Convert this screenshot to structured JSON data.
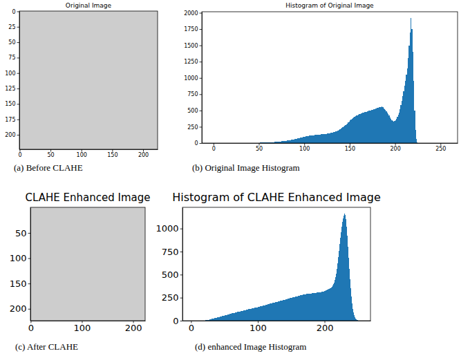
{
  "chart_data": [
    {
      "type": "image",
      "title": "Original Image",
      "caption": "(a) Before CLAHE",
      "xlim": [
        -0.5,
        223.5
      ],
      "ylim": [
        223.5,
        -0.5
      ],
      "xticks": [
        0,
        50,
        100,
        150,
        200
      ],
      "yticks": [
        0,
        25,
        50,
        75,
        100,
        125,
        150,
        175,
        200
      ]
    },
    {
      "type": "histogram",
      "title": "Histogram of Original Image",
      "caption": "(b) Original Image Histogram",
      "color": "#1f77b4",
      "xlim": [
        -12.8,
        268.8
      ],
      "ylim": [
        0,
        2016
      ],
      "xticks": [
        0,
        50,
        100,
        150,
        200,
        250
      ],
      "yticks": [
        0,
        250,
        500,
        750,
        1000,
        1250,
        1500,
        1750,
        2000
      ],
      "bins": [
        35,
        36,
        37,
        38,
        39,
        40,
        41,
        42,
        43,
        44,
        45,
        46,
        47,
        48,
        49,
        50,
        51,
        52,
        53,
        54,
        55,
        56,
        57,
        58,
        59,
        60,
        61,
        62,
        63,
        64,
        65,
        66,
        67,
        68,
        69,
        70,
        71,
        72,
        73,
        74,
        75,
        76,
        77,
        78,
        79,
        80,
        81,
        82,
        83,
        84,
        85,
        86,
        87,
        88,
        89,
        90,
        91,
        92,
        93,
        94,
        95,
        96,
        97,
        98,
        99,
        100,
        101,
        102,
        103,
        104,
        105,
        106,
        107,
        108,
        109,
        110,
        111,
        112,
        113,
        114,
        115,
        116,
        117,
        118,
        119,
        120,
        121,
        122,
        123,
        124,
        125,
        126,
        127,
        128,
        129,
        130,
        131,
        132,
        133,
        134,
        135,
        136,
        137,
        138,
        139,
        140,
        141,
        142,
        143,
        144,
        145,
        146,
        147,
        148,
        149,
        150,
        151,
        152,
        153,
        154,
        155,
        156,
        157,
        158,
        159,
        160,
        161,
        162,
        163,
        164,
        165,
        166,
        167,
        168,
        169,
        170,
        171,
        172,
        173,
        174,
        175,
        176,
        177,
        178,
        179,
        180,
        181,
        182,
        183,
        184,
        185,
        186,
        187,
        188,
        189,
        190,
        191,
        192,
        193,
        194,
        195,
        196,
        197,
        198,
        199,
        200,
        201,
        202,
        203,
        204,
        205,
        206,
        207,
        208,
        209,
        210,
        211,
        212,
        213,
        214,
        215,
        216,
        217,
        218,
        219,
        220,
        221,
        222,
        223,
        224,
        225,
        226
      ],
      "values": [
        1,
        0,
        1,
        1,
        2,
        1,
        2,
        2,
        3,
        2,
        3,
        4,
        3,
        4,
        5,
        5,
        6,
        6,
        7,
        7,
        8,
        8,
        9,
        10,
        10,
        11,
        12,
        12,
        13,
        14,
        15,
        15,
        16,
        18,
        19,
        20,
        21,
        22,
        24,
        25,
        27,
        28,
        30,
        32,
        34,
        36,
        38,
        40,
        43,
        46,
        48,
        52,
        55,
        58,
        62,
        65,
        68,
        72,
        75,
        78,
        82,
        85,
        88,
        92,
        95,
        98,
        102,
        105,
        108,
        110,
        112,
        115,
        117,
        118,
        120,
        122,
        125,
        124,
        127,
        128,
        130,
        128,
        132,
        135,
        133,
        136,
        138,
        137,
        140,
        142,
        145,
        148,
        150,
        152,
        156,
        160,
        164,
        168,
        172,
        178,
        184,
        190,
        196,
        204,
        212,
        220,
        230,
        240,
        250,
        262,
        274,
        286,
        300,
        315,
        330,
        345,
        358,
        370,
        382,
        395,
        405,
        412,
        420,
        428,
        435,
        442,
        448,
        455,
        460,
        466,
        470,
        475,
        478,
        482,
        486,
        490,
        494,
        498,
        502,
        506,
        512,
        518,
        522,
        528,
        532,
        538,
        542,
        548,
        552,
        556,
        560,
        548,
        535,
        520,
        505,
        490,
        470,
        450,
        420,
        395,
        370,
        350,
        338,
        330,
        340,
        355,
        375,
        400,
        430,
        470,
        520,
        580,
        650,
        720,
        800,
        880,
        960,
        1050,
        1150,
        1300,
        1500,
        1700,
        1920,
        1750,
        1400,
        950,
        500,
        200,
        60,
        15,
        3
      ]
    },
    {
      "type": "image",
      "title": "CLAHE Enhanced Image",
      "caption": "(c) After CLAHE",
      "xlim": [
        -0.5,
        223.5
      ],
      "ylim": [
        223.5,
        -0.5
      ],
      "xticks": [
        0,
        100,
        200
      ],
      "yticks": [
        50,
        100,
        150,
        200
      ]
    },
    {
      "type": "histogram",
      "title": "Histogram of CLAHE Enhanced Image",
      "caption": "(d) enhanced Image Histogram",
      "color": "#1f77b4",
      "xlim": [
        -12.8,
        268.8
      ],
      "ylim": [
        0,
        1230
      ],
      "xticks": [
        0,
        100,
        200
      ],
      "yticks": [
        0,
        250,
        500,
        750,
        1000
      ],
      "bins": [
        15,
        16,
        17,
        18,
        19,
        20,
        21,
        22,
        23,
        24,
        25,
        26,
        27,
        28,
        29,
        30,
        31,
        32,
        33,
        34,
        35,
        36,
        37,
        38,
        39,
        40,
        41,
        42,
        43,
        44,
        45,
        46,
        47,
        48,
        49,
        50,
        51,
        52,
        53,
        54,
        55,
        56,
        57,
        58,
        59,
        60,
        61,
        62,
        63,
        64,
        65,
        66,
        67,
        68,
        69,
        70,
        71,
        72,
        73,
        74,
        75,
        76,
        77,
        78,
        79,
        80,
        81,
        82,
        83,
        84,
        85,
        86,
        87,
        88,
        89,
        90,
        91,
        92,
        93,
        94,
        95,
        96,
        97,
        98,
        99,
        100,
        101,
        102,
        103,
        104,
        105,
        106,
        107,
        108,
        109,
        110,
        111,
        112,
        113,
        114,
        115,
        116,
        117,
        118,
        119,
        120,
        121,
        122,
        123,
        124,
        125,
        126,
        127,
        128,
        129,
        130,
        131,
        132,
        133,
        134,
        135,
        136,
        137,
        138,
        139,
        140,
        141,
        142,
        143,
        144,
        145,
        146,
        147,
        148,
        149,
        150,
        151,
        152,
        153,
        154,
        155,
        156,
        157,
        158,
        159,
        160,
        161,
        162,
        163,
        164,
        165,
        166,
        167,
        168,
        169,
        170,
        171,
        172,
        173,
        174,
        175,
        176,
        177,
        178,
        179,
        180,
        181,
        182,
        183,
        184,
        185,
        186,
        187,
        188,
        189,
        190,
        191,
        192,
        193,
        194,
        195,
        196,
        197,
        198,
        199,
        200,
        201,
        202,
        203,
        204,
        205,
        206,
        207,
        208,
        209,
        210,
        211,
        212,
        213,
        214,
        215,
        216,
        217,
        218,
        219,
        220,
        221,
        222,
        223,
        224,
        225,
        226,
        227,
        228,
        229,
        230,
        231,
        232,
        233,
        234,
        235,
        236,
        237,
        238,
        239,
        240,
        241,
        242,
        243,
        244,
        245,
        246,
        247,
        248,
        249,
        250,
        251,
        252,
        253
      ],
      "values": [
        1,
        1,
        2,
        2,
        3,
        3,
        4,
        5,
        6,
        7,
        8,
        10,
        11,
        13,
        15,
        17,
        19,
        21,
        23,
        25,
        27,
        29,
        31,
        33,
        35,
        37,
        39,
        41,
        43,
        45,
        47,
        49,
        51,
        53,
        55,
        57,
        59,
        61,
        63,
        65,
        67,
        69,
        71,
        73,
        75,
        77,
        79,
        81,
        83,
        84,
        86,
        88,
        90,
        92,
        94,
        96,
        98,
        99,
        101,
        103,
        105,
        107,
        108,
        110,
        112,
        114,
        115,
        117,
        119,
        120,
        122,
        124,
        125,
        127,
        129,
        130,
        132,
        134,
        136,
        137,
        139,
        141,
        142,
        144,
        146,
        148,
        150,
        152,
        154,
        156,
        158,
        160,
        162,
        164,
        166,
        168,
        170,
        172,
        174,
        176,
        178,
        180,
        182,
        184,
        186,
        188,
        190,
        192,
        194,
        196,
        198,
        200,
        202,
        204,
        206,
        208,
        210,
        212,
        214,
        216,
        218,
        220,
        222,
        224,
        226,
        228,
        230,
        232,
        234,
        236,
        238,
        240,
        242,
        244,
        246,
        248,
        250,
        252,
        254,
        256,
        258,
        260,
        262,
        264,
        266,
        268,
        270,
        272,
        274,
        276,
        278,
        280,
        282,
        284,
        285,
        286,
        287,
        288,
        289,
        290,
        291,
        292,
        293,
        294,
        295,
        296,
        297,
        298,
        299,
        300,
        301,
        302,
        303,
        304,
        305,
        306,
        307,
        308,
        309,
        310,
        312,
        314,
        316,
        318,
        320,
        322,
        325,
        328,
        331,
        334,
        338,
        342,
        346,
        350,
        356,
        362,
        370,
        380,
        395,
        415,
        440,
        470,
        510,
        560,
        620,
        690,
        760,
        830,
        900,
        960,
        1020,
        1070,
        1110,
        1140,
        1160,
        1170,
        1150,
        1100,
        1020,
        920,
        800,
        680,
        560,
        450,
        350,
        260,
        190,
        130,
        90,
        60,
        40,
        25,
        15,
        9,
        5,
        3,
        1,
        0
      ]
    }
  ]
}
